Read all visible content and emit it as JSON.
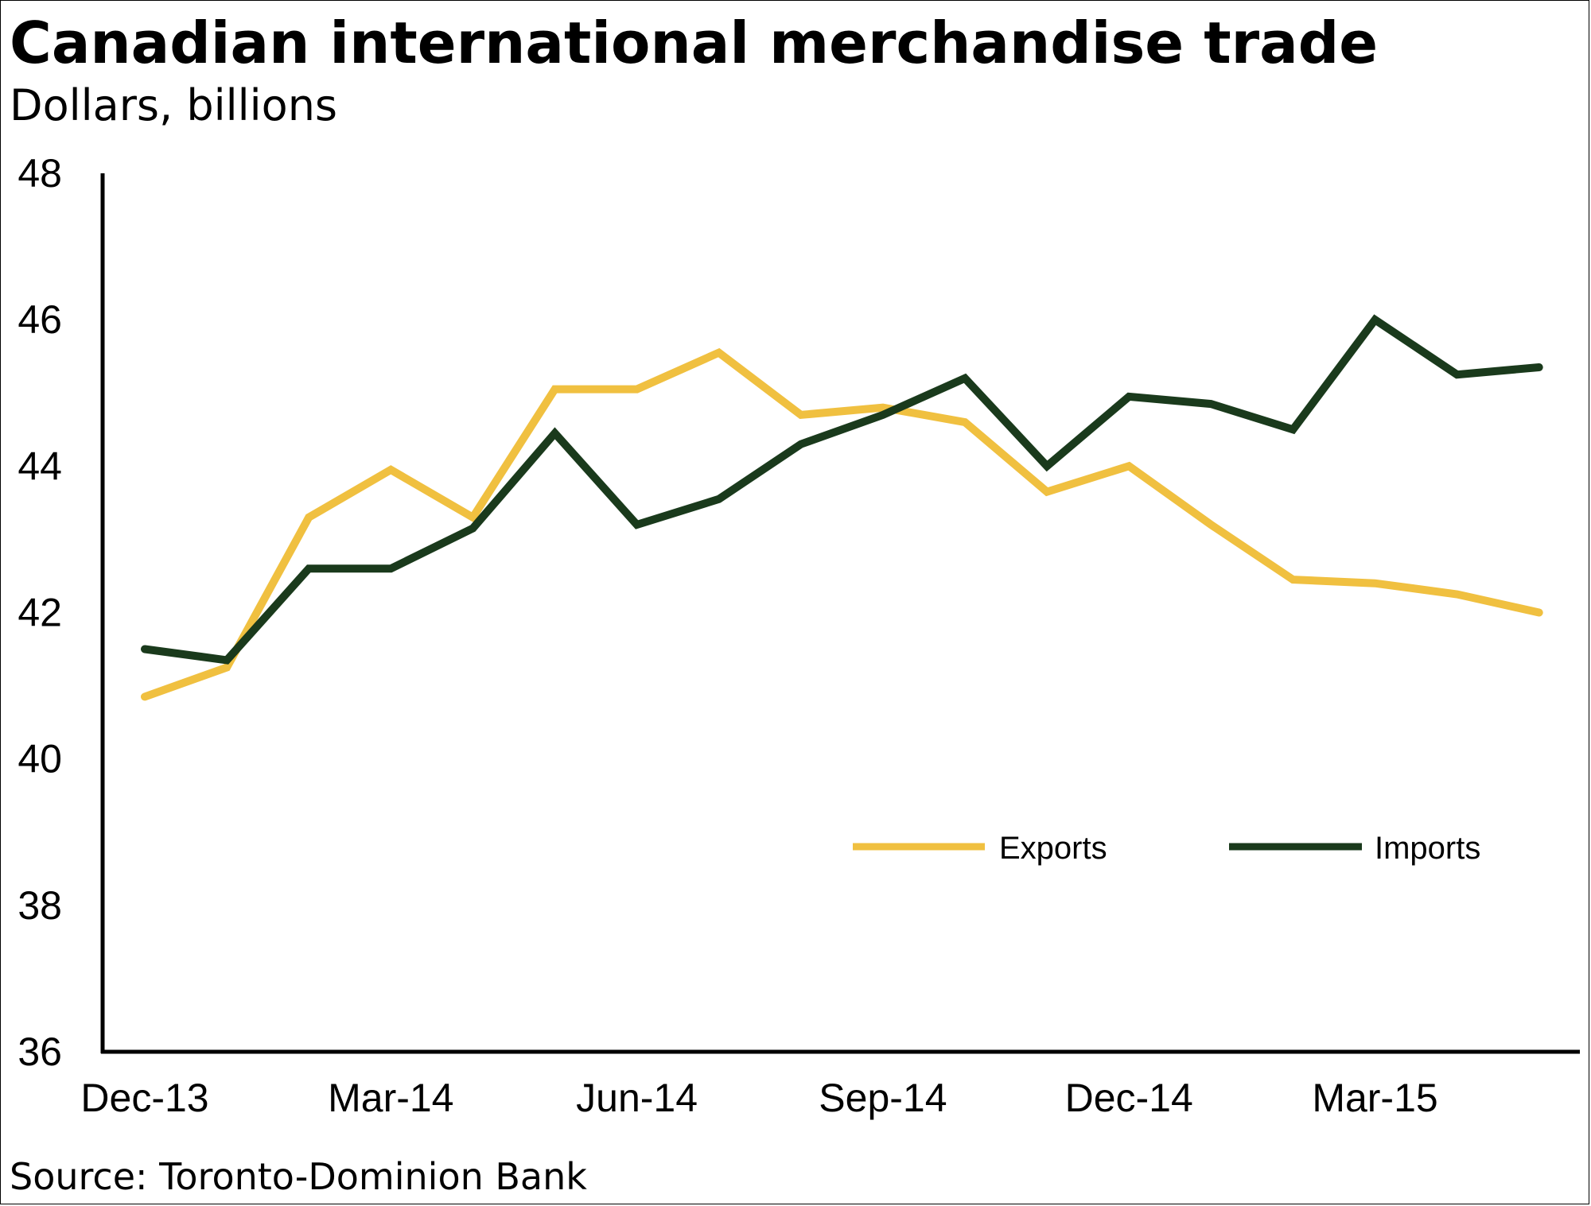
{
  "title": "Canadian international merchandise trade",
  "subtitle": "Dollars, billions",
  "source": "Source: Toronto-Dominion Bank",
  "colors": {
    "exports": "#f0c040",
    "imports": "#1a3a1c",
    "axis": "#000000"
  },
  "chart_data": {
    "type": "line",
    "x": [
      "Dec-13",
      "Jan-14",
      "Feb-14",
      "Mar-14",
      "Apr-14",
      "May-14",
      "Jun-14",
      "Jul-14",
      "Aug-14",
      "Sep-14",
      "Oct-14",
      "Nov-14",
      "Dec-14",
      "Jan-15",
      "Feb-15",
      "Mar-15",
      "Apr-15",
      "May-15"
    ],
    "x_tick_labels": [
      "Dec-13",
      "Mar-14",
      "Jun-14",
      "Sep-14",
      "Dec-14",
      "Mar-15"
    ],
    "series": [
      {
        "name": "Exports",
        "values": [
          40.85,
          41.25,
          43.3,
          43.95,
          43.3,
          45.05,
          45.05,
          45.55,
          44.7,
          44.8,
          44.6,
          43.65,
          44.0,
          43.2,
          42.45,
          42.4,
          42.25,
          42.0
        ]
      },
      {
        "name": "Imports",
        "values": [
          41.5,
          41.35,
          42.6,
          42.6,
          43.15,
          44.45,
          43.2,
          43.55,
          44.3,
          44.7,
          45.2,
          44.0,
          44.95,
          44.85,
          44.5,
          46.0,
          45.25,
          45.35
        ]
      }
    ],
    "ylim": [
      36,
      48
    ],
    "yticks": [
      36,
      38,
      40,
      42,
      44,
      46,
      48
    ],
    "xlabel": "",
    "ylabel": "",
    "grid": false,
    "legend_position": "bottom-right inside plot"
  }
}
